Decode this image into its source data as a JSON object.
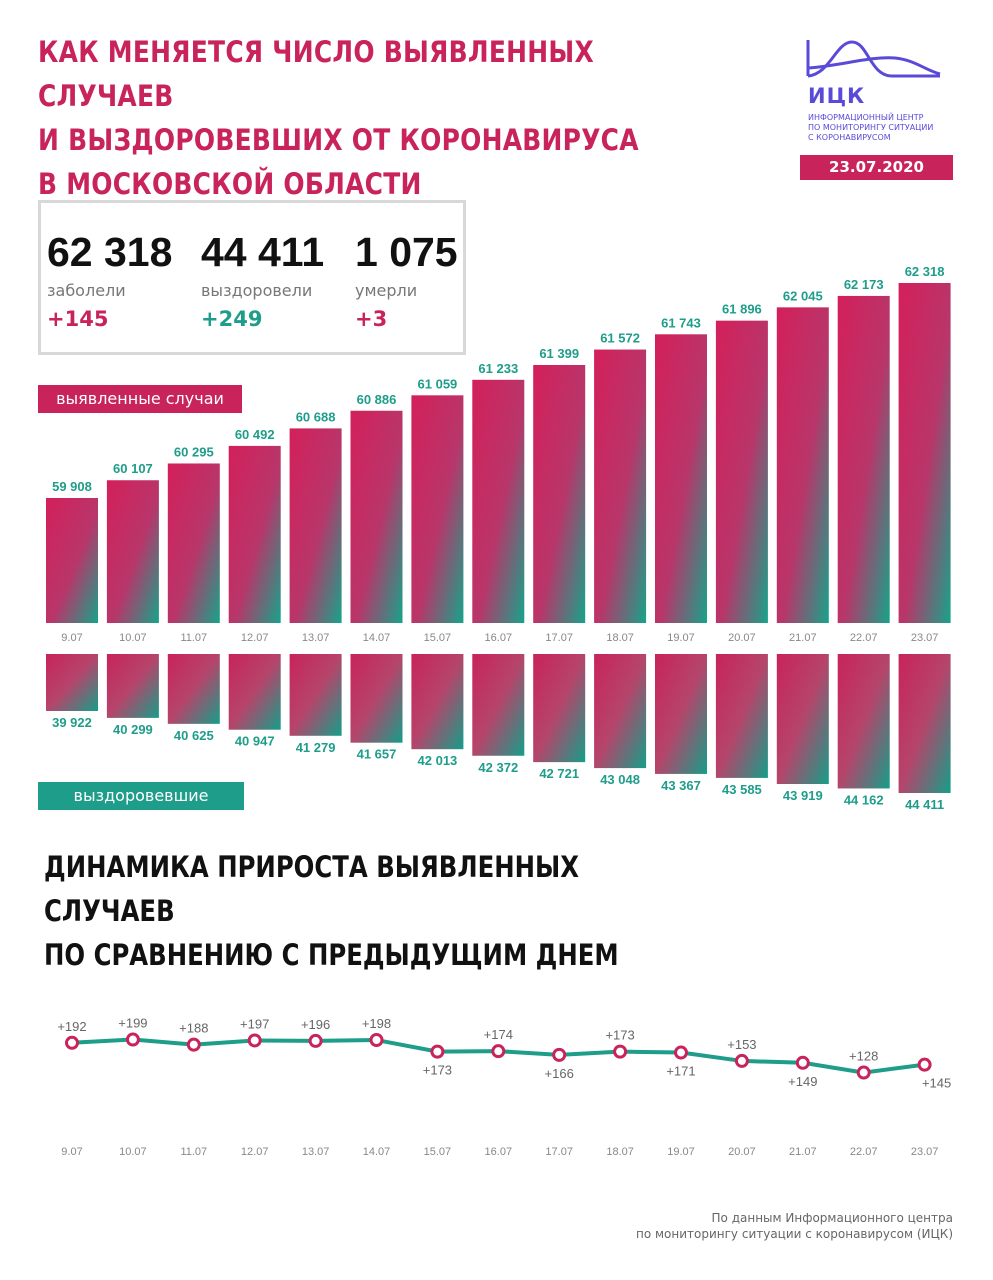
{
  "title_lines": [
    "КАК МЕНЯЕТСЯ ЧИСЛО ВЫЯВЛЕННЫХ СЛУЧАЕВ",
    "И ВЫЗДОРОВЕВШИХ ОТ КОРОНАВИРУСА",
    "В МОСКОВСКОЙ ОБЛАСТИ"
  ],
  "logo": {
    "name": "ИЦК",
    "subtitle_lines": [
      "ИНФОРМАЦИОННЫЙ ЦЕНТР",
      "ПО МОНИТОРИНГУ СИТУАЦИИ",
      "С КОРОНАВИРУСОМ"
    ],
    "date": "23.07.2020"
  },
  "stats": [
    {
      "number": "62 318",
      "label": "заболели",
      "delta": "+145",
      "color": "red"
    },
    {
      "number": "44 411",
      "label": "выздоровели",
      "delta": "+249",
      "color": "green"
    },
    {
      "number": "1 075",
      "label": "умерли",
      "delta": "+3",
      "color": "red"
    }
  ],
  "legend_cases": "выявленные случаи",
  "legend_recovered": "выздоровевшие",
  "title2_lines": [
    "ДИНАМИКА ПРИРОСТА ВЫЯВЛЕННЫХ СЛУЧАЕВ",
    "ПО СРАВНЕНИЮ С ПРЕДЫДУЩИМ ДНЕМ"
  ],
  "footer_lines": [
    "По данным Информационного центра",
    "по мониторингу ситуации с коронавирусом (ИЦК)"
  ],
  "colors": {
    "red": "#c8235a",
    "green": "#1e9d8a",
    "logo": "#5a4ad8"
  },
  "chart_data": [
    {
      "type": "bar",
      "categories": [
        "9.07",
        "10.07",
        "11.07",
        "12.07",
        "13.07",
        "14.07",
        "15.07",
        "16.07",
        "17.07",
        "18.07",
        "19.07",
        "20.07",
        "21.07",
        "22.07",
        "23.07"
      ],
      "series": [
        {
          "name": "выявленные случаи",
          "values": [
            59908,
            60107,
            60295,
            60492,
            60688,
            60886,
            61059,
            61233,
            61399,
            61572,
            61743,
            61896,
            62045,
            62173,
            62318
          ],
          "labels": [
            "59 908",
            "60 107",
            "60 295",
            "60 492",
            "60 688",
            "60 886",
            "61 059",
            "61 233",
            "61 399",
            "61 572",
            "61 743",
            "61 896",
            "62 045",
            "62 173",
            "62 318"
          ]
        },
        {
          "name": "выздоровевшие",
          "values": [
            39922,
            40299,
            40625,
            40947,
            41279,
            41657,
            42013,
            42372,
            42721,
            43048,
            43367,
            43585,
            43919,
            44162,
            44411
          ],
          "labels": [
            "39 922",
            "40 299",
            "40 625",
            "40 947",
            "41 279",
            "41 657",
            "42 013",
            "42 372",
            "42 721",
            "43 048",
            "43 367",
            "43 585",
            "43 919",
            "44 162",
            "44 411"
          ]
        }
      ]
    },
    {
      "type": "line",
      "categories": [
        "9.07",
        "10.07",
        "11.07",
        "12.07",
        "13.07",
        "14.07",
        "15.07",
        "16.07",
        "17.07",
        "18.07",
        "19.07",
        "20.07",
        "21.07",
        "22.07",
        "23.07"
      ],
      "values": [
        192,
        199,
        188,
        197,
        196,
        198,
        173,
        174,
        166,
        173,
        171,
        153,
        149,
        128,
        145
      ],
      "labels": [
        "+192",
        "+199",
        "+188",
        "+197",
        "+196",
        "+198",
        "+173",
        "+174",
        "+166",
        "+173",
        "+171",
        "+153",
        "+149",
        "+128",
        "+145"
      ]
    }
  ]
}
